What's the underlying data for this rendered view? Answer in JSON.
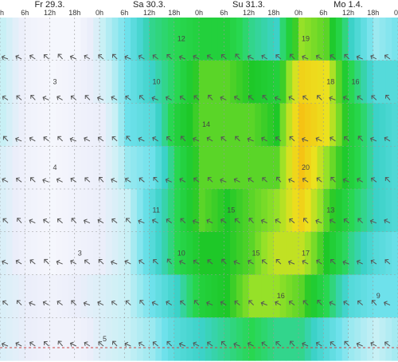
{
  "chart_data": {
    "type": "heatmap",
    "days": [
      "Fr 29.3.",
      "Sa 30.3.",
      "Su 31.3.",
      "Mo 1.4."
    ],
    "hours": [
      "0h",
      "6h",
      "12h",
      "18h",
      "0h",
      "6h",
      "12h",
      "18h",
      "0h",
      "6h",
      "12h",
      "18h",
      "0h",
      "6h",
      "12h",
      "18h",
      "0h"
    ],
    "levels": 8,
    "columns": [
      [
        6,
        6,
        6,
        5,
        5,
        5,
        5,
        5
      ],
      [
        3,
        3,
        3,
        3,
        3,
        3,
        4,
        4
      ],
      [
        2,
        2,
        2,
        2,
        2,
        2,
        3,
        3
      ],
      [
        2,
        3,
        3,
        3,
        3,
        3,
        4,
        3
      ],
      [
        6,
        5,
        4,
        4,
        4,
        4,
        5,
        5
      ],
      [
        8,
        8,
        8,
        7,
        6,
        6,
        6,
        6
      ],
      [
        11,
        10,
        9,
        8,
        9,
        9,
        8,
        7
      ],
      [
        12,
        12,
        13,
        12,
        12,
        12,
        10,
        9
      ],
      [
        13,
        15,
        15,
        15,
        15,
        14,
        13,
        10
      ],
      [
        13,
        15,
        15,
        15,
        14,
        14,
        14,
        11
      ],
      [
        11,
        14,
        15,
        15,
        15,
        15,
        16,
        12
      ],
      [
        10,
        13,
        14,
        15,
        16,
        17,
        16,
        11
      ],
      [
        16,
        19,
        20,
        20,
        19,
        17,
        15,
        11
      ],
      [
        15,
        18,
        18,
        16,
        15,
        14,
        12,
        9
      ],
      [
        10,
        12,
        13,
        13,
        12,
        11,
        9,
        7
      ],
      [
        7,
        9,
        10,
        10,
        10,
        9,
        8,
        6
      ],
      [
        8,
        9,
        9,
        9,
        9,
        8,
        8,
        7
      ]
    ],
    "contour_labels": [
      {
        "col": 2,
        "row": 1,
        "text": "3"
      },
      {
        "col": 2,
        "row": 3,
        "text": "4"
      },
      {
        "col": 3,
        "row": 5,
        "text": "3"
      },
      {
        "col": 4,
        "row": 7,
        "text": "5"
      },
      {
        "col": 6,
        "row": 1,
        "text": "10"
      },
      {
        "col": 6,
        "row": 4,
        "text": "11"
      },
      {
        "col": 7,
        "row": 0,
        "text": "12"
      },
      {
        "col": 7,
        "row": 5,
        "text": "10"
      },
      {
        "col": 8,
        "row": 2,
        "text": "14"
      },
      {
        "col": 9,
        "row": 4,
        "text": "15"
      },
      {
        "col": 10,
        "row": 5,
        "text": "15"
      },
      {
        "col": 11,
        "row": 6,
        "text": "16"
      },
      {
        "col": 12,
        "row": 0,
        "text": "19"
      },
      {
        "col": 12,
        "row": 3,
        "text": "20"
      },
      {
        "col": 12,
        "row": 5,
        "text": "17"
      },
      {
        "col": 13,
        "row": 1,
        "text": "18"
      },
      {
        "col": 13,
        "row": 4,
        "text": "13"
      },
      {
        "col": 14,
        "row": 1,
        "text": "16"
      },
      {
        "col": 15,
        "row": 6,
        "text": "9"
      }
    ],
    "wind_arrow_rows": 8,
    "wind_arrow_cols": 29
  },
  "colors": {
    "background": "#ffffff",
    "grid": "#9a9a9a",
    "arrow": "#555555",
    "dashed_line": "#cc4444"
  }
}
